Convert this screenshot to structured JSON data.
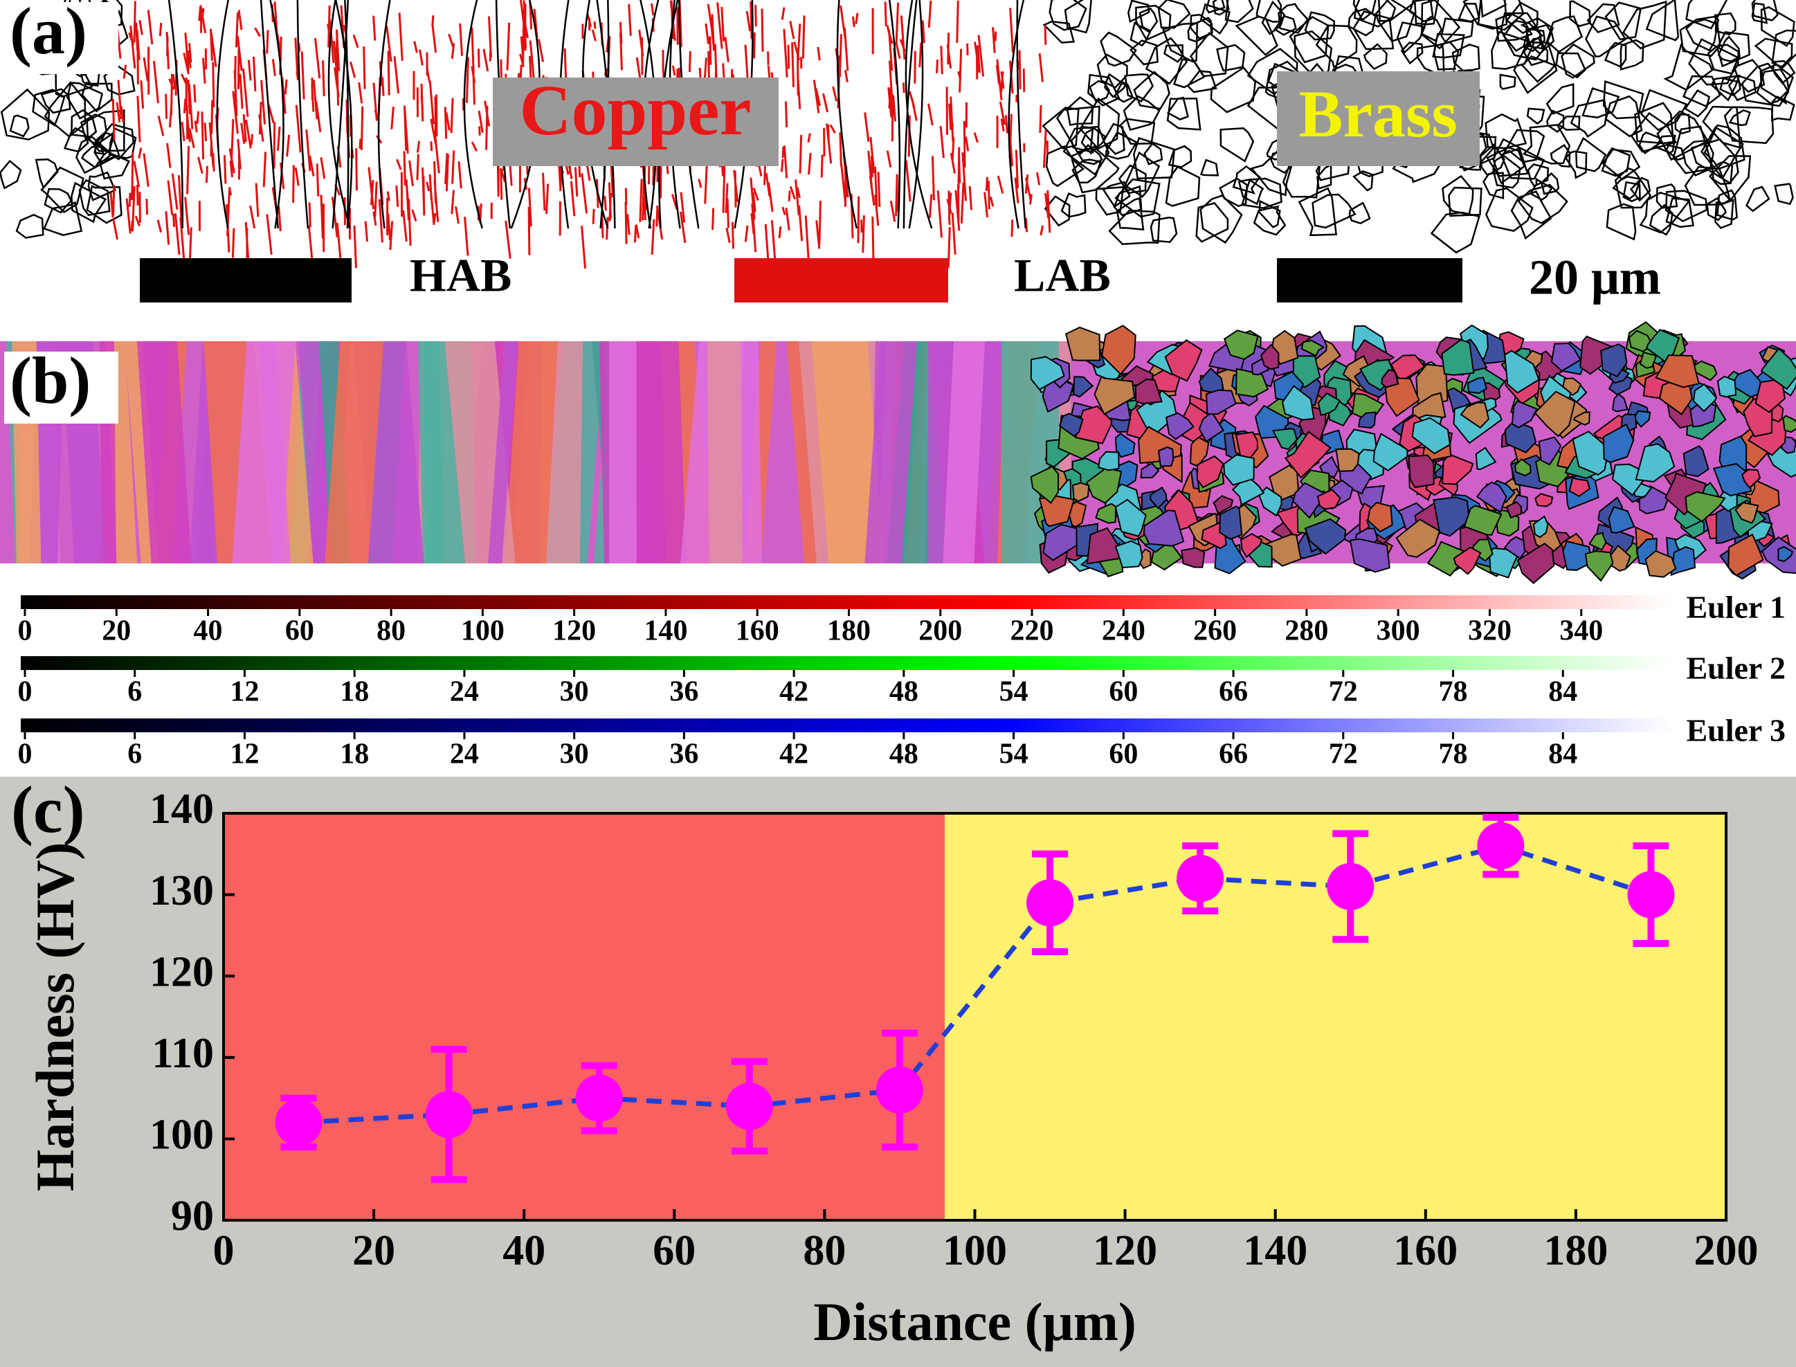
{
  "panel_a": {
    "label": "(a)",
    "copper": "Copper",
    "brass": "Brass",
    "legend": [
      "HAB",
      "LAB"
    ],
    "scale_bar": "20 μm"
  },
  "panel_b": {
    "label": "(b)"
  },
  "colorbars": [
    {
      "label": "Euler 1",
      "color": "#ff0000",
      "lim": [
        0,
        360
      ],
      "ticks": [
        0,
        20,
        40,
        60,
        80,
        100,
        120,
        140,
        160,
        180,
        200,
        220,
        240,
        260,
        280,
        300,
        320,
        340
      ]
    },
    {
      "label": "Euler 2",
      "color": "#00ff00",
      "lim": [
        0,
        90
      ],
      "ticks": [
        0,
        6,
        12,
        18,
        24,
        30,
        36,
        42,
        48,
        54,
        60,
        66,
        72,
        78,
        84
      ]
    },
    {
      "label": "Euler 3",
      "color": "#0000ff",
      "lim": [
        0,
        90
      ],
      "ticks": [
        0,
        6,
        12,
        18,
        24,
        30,
        36,
        42,
        48,
        54,
        60,
        66,
        72,
        78,
        84
      ]
    }
  ],
  "chart_data": {
    "type": "scatter",
    "panel_label": "(c)",
    "x_label": "Distance (μm)",
    "y_label": "Hardness (HV)",
    "x": [
      10,
      30,
      50,
      70,
      90,
      110,
      130,
      150,
      170,
      190
    ],
    "series": [
      {
        "color": "#ff00ff",
        "line_color": "#1f3fd8",
        "values": [
          102,
          103,
          105,
          104,
          106,
          129,
          132,
          131,
          136,
          130
        ],
        "errors": [
          3,
          8,
          4,
          5.5,
          7,
          6,
          4,
          6.5,
          3.5,
          6
        ]
      }
    ],
    "regions": [
      {
        "from": 0,
        "to": 96,
        "color": "#f96060"
      },
      {
        "from": 96,
        "to": 200,
        "color": "#fff170"
      }
    ],
    "xlim": [
      0,
      200
    ],
    "xticks": [
      0,
      20,
      40,
      60,
      80,
      100,
      120,
      140,
      160,
      180,
      200
    ],
    "ylim": [
      90,
      140
    ],
    "yticks": [
      90,
      100,
      110,
      120,
      130,
      140
    ]
  }
}
